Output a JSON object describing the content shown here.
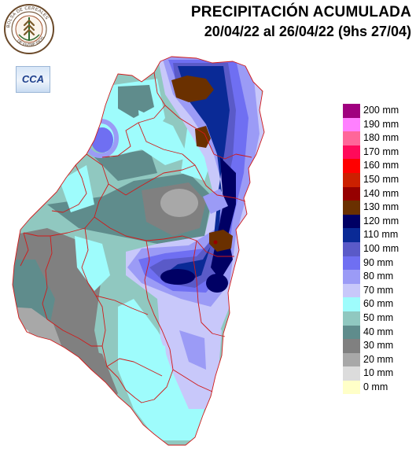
{
  "title": {
    "line1": "PRECIPITACIÓN ACUMULADA",
    "line2": "20/04/22 al 26/04/22 (9hs 27/04)"
  },
  "logos": {
    "seal_text": "BOLSA DE CEREALES DE ENTRE RIOS",
    "cca_text": "CCA"
  },
  "legend": [
    {
      "label": "200 mm",
      "color": "#a0007f"
    },
    {
      "label": "190 mm",
      "color": "#ff80ff"
    },
    {
      "label": "180 mm",
      "color": "#ff6699"
    },
    {
      "label": "170 mm",
      "color": "#ff0a5a"
    },
    {
      "label": "160 mm",
      "color": "#ff0000"
    },
    {
      "label": "150 mm",
      "color": "#cc2000"
    },
    {
      "label": "140 mm",
      "color": "#960000"
    },
    {
      "label": "130 mm",
      "color": "#6a3000"
    },
    {
      "label": "120 mm",
      "color": "#000064"
    },
    {
      "label": "110 mm",
      "color": "#0a2a96"
    },
    {
      "label": "100 mm",
      "color": "#5a5ac8"
    },
    {
      "label": "90 mm",
      "color": "#6f6ff2"
    },
    {
      "label": "80 mm",
      "color": "#9b9bf6"
    },
    {
      "label": "70 mm",
      "color": "#c8c8fa"
    },
    {
      "label": "60 mm",
      "color": "#9efcfc"
    },
    {
      "label": "50 mm",
      "color": "#90c8c0"
    },
    {
      "label": "40 mm",
      "color": "#5f8c8c"
    },
    {
      "label": "30 mm",
      "color": "#808080"
    },
    {
      "label": "20 mm",
      "color": "#a8a8a8"
    },
    {
      "label": "10 mm",
      "color": "#dcdcdc"
    },
    {
      "label": "0 mm",
      "color": "#ffffc8"
    }
  ]
}
